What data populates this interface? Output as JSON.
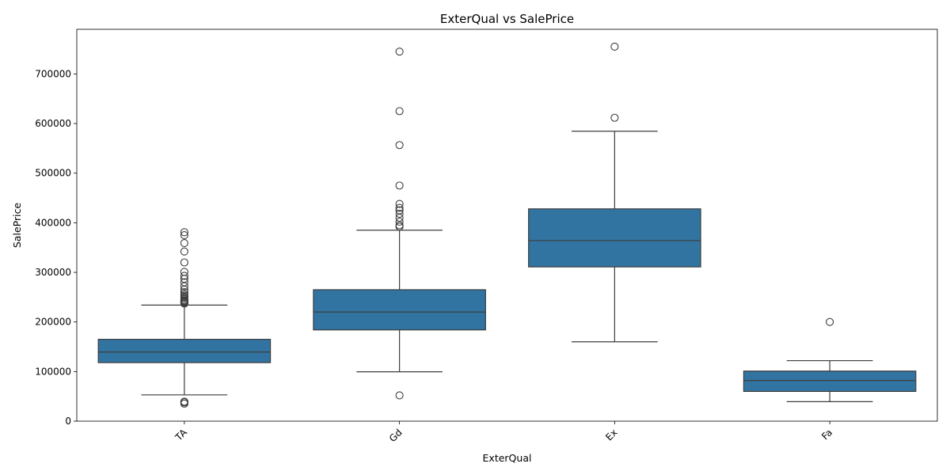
{
  "chart_data": {
    "type": "box",
    "title": "ExterQual vs SalePrice",
    "xlabel": "ExterQual",
    "ylabel": "SalePrice",
    "categories": [
      "TA",
      "Gd",
      "Ex",
      "Fa"
    ],
    "ylim": [
      0,
      790000
    ],
    "yticks": [
      0,
      100000,
      200000,
      300000,
      400000,
      500000,
      600000,
      700000
    ],
    "ytick_labels": [
      "0",
      "100000",
      "200000",
      "300000",
      "400000",
      "500000",
      "600000",
      "700000"
    ],
    "color": "#3274a1",
    "line_color": "#3d3d3d",
    "boxes": [
      {
        "category": "TA",
        "whisker_low": 53000,
        "q1": 118000,
        "median": 139500,
        "q3": 165000,
        "whisker_high": 234000,
        "outliers": [
          35311,
          37900,
          39300,
          237000,
          239000,
          240000,
          241500,
          243000,
          245000,
          248000,
          250000,
          253000,
          256000,
          260000,
          265000,
          272000,
          280000,
          287000,
          293000,
          301000,
          320000,
          342000,
          359000,
          375000,
          381000
        ]
      },
      {
        "category": "Gd",
        "whisker_low": 99500,
        "q1": 184000,
        "median": 220000,
        "q3": 265000,
        "whisker_high": 385000,
        "outliers": [
          52000,
          392000,
          395000,
          402000,
          410000,
          418000,
          425000,
          430000,
          438000,
          475000,
          556581,
          625000,
          745000
        ]
      },
      {
        "category": "Ex",
        "whisker_low": 160000,
        "q1": 311000,
        "median": 364000,
        "q3": 428000,
        "whisker_high": 584500,
        "outliers": [
          611657,
          755000
        ]
      },
      {
        "category": "Fa",
        "whisker_low": 39300,
        "q1": 60000,
        "median": 82000,
        "q3": 101000,
        "whisker_high": 122000,
        "outliers": [
          200000
        ]
      }
    ]
  }
}
